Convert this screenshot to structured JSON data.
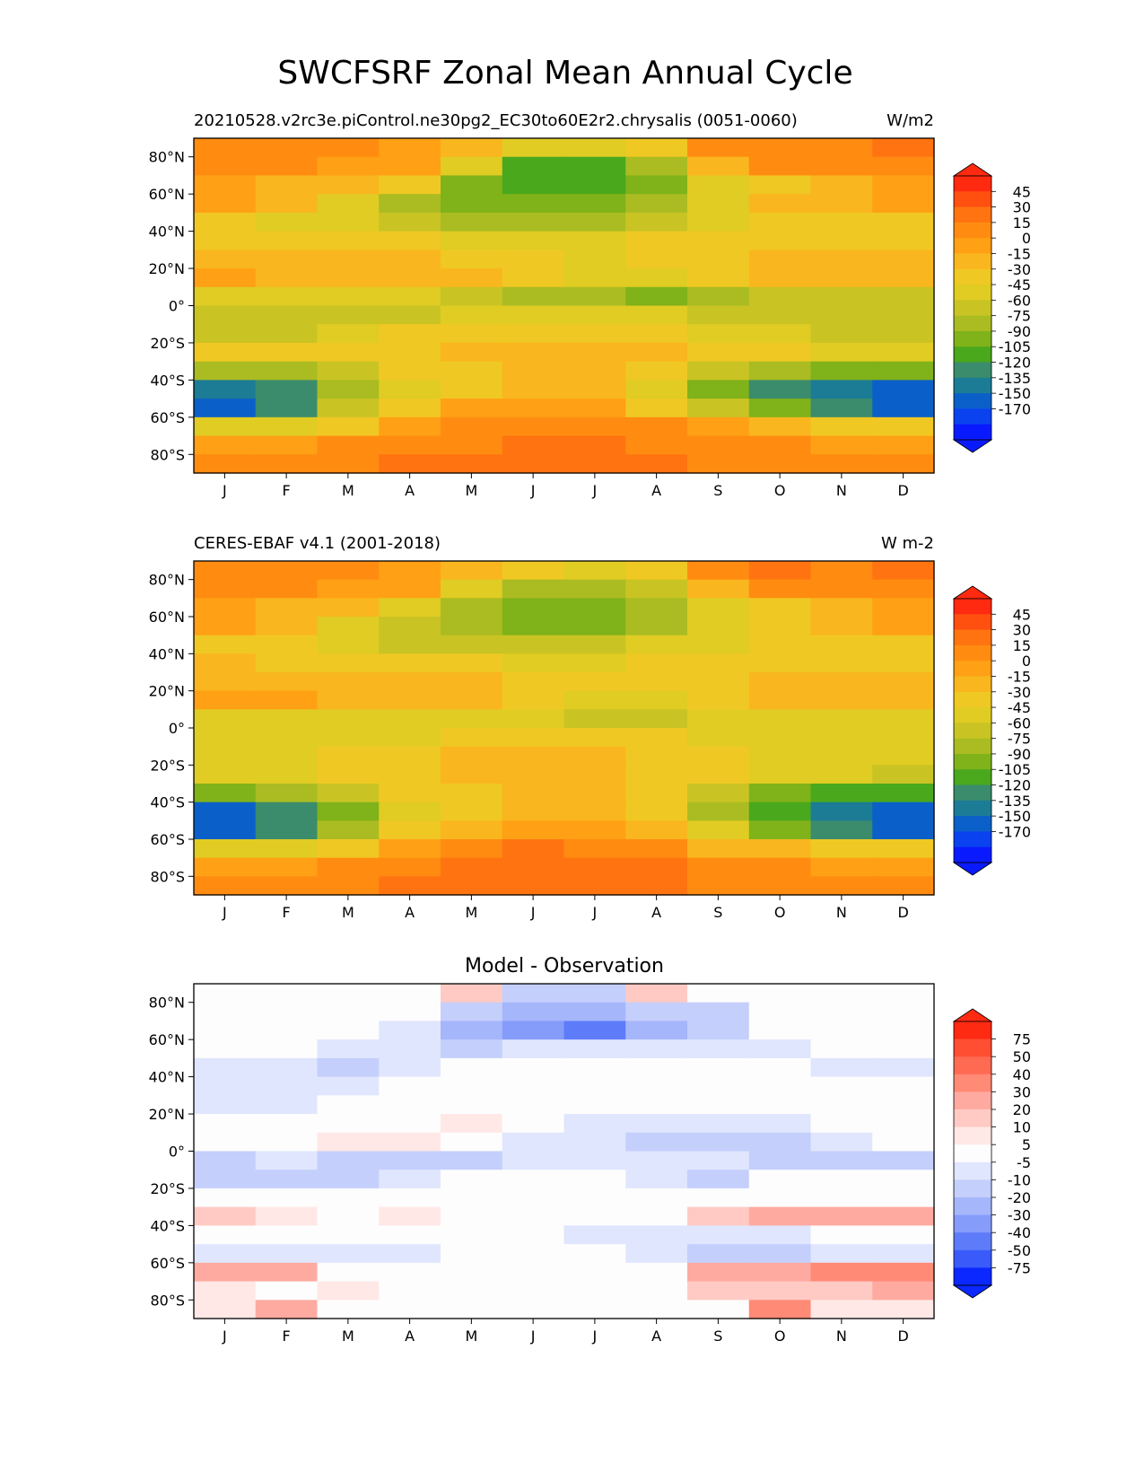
{
  "figure": {
    "title": "SWCFSRF Zonal Mean Annual Cycle"
  },
  "chart_data": [
    {
      "type": "heatmap",
      "title_left": "20210528.v2rc3e.piControl.ne30pg2_EC30to60E2r2.chrysalis (0051-0060)",
      "title_right": "W/m2",
      "x": [
        "J",
        "F",
        "M",
        "A",
        "M",
        "J",
        "J",
        "A",
        "S",
        "O",
        "N",
        "D"
      ],
      "ylim": [
        -90,
        90
      ],
      "yticks": [
        {
          "v": 80,
          "label": "80°N"
        },
        {
          "v": 60,
          "label": "60°N"
        },
        {
          "v": 40,
          "label": "40°N"
        },
        {
          "v": 20,
          "label": "20°N"
        },
        {
          "v": 0,
          "label": "0°"
        },
        {
          "v": -20,
          "label": "20°S"
        },
        {
          "v": -40,
          "label": "40°S"
        },
        {
          "v": -60,
          "label": "60°S"
        },
        {
          "v": -80,
          "label": "80°S"
        }
      ],
      "colorbar": {
        "labels": [
          "45",
          "30",
          "15",
          "0",
          "-15",
          "-30",
          "-45",
          "-60",
          "-75",
          "-90",
          "-105",
          "-120",
          "-135",
          "-150",
          "-170"
        ],
        "colors": [
          "#ff2a10",
          "#ff5010",
          "#ff7410",
          "#ff8c10",
          "#ffa015",
          "#f9b61e",
          "#f0c823",
          "#e0cc23",
          "#c9c424",
          "#aabc22",
          "#80b219",
          "#4aa81c",
          "#3a8c6c",
          "#1c7c96",
          "#0a60c8",
          "#0a42f0",
          "#0a1aff"
        ]
      },
      "lat": [
        85,
        75,
        65,
        55,
        45,
        35,
        25,
        15,
        5,
        -5,
        -15,
        -25,
        -35,
        -45,
        -55,
        -65,
        -75,
        -85
      ],
      "values": [
        [
          10,
          5,
          0,
          -5,
          -20,
          -50,
          -60,
          -45,
          5,
          10,
          10,
          15
        ],
        [
          0,
          0,
          -5,
          -10,
          -60,
          -110,
          -120,
          -90,
          -20,
          0,
          5,
          10
        ],
        [
          -10,
          -20,
          -30,
          -45,
          -95,
          -120,
          -115,
          -100,
          -60,
          -35,
          -20,
          -5
        ],
        [
          -15,
          -30,
          -50,
          -80,
          -95,
          -105,
          -100,
          -85,
          -55,
          -30,
          -20,
          -15
        ],
        [
          -40,
          -50,
          -60,
          -75,
          -80,
          -85,
          -80,
          -70,
          -50,
          -40,
          -35,
          -40
        ],
        [
          -45,
          -45,
          -45,
          -45,
          -50,
          -55,
          -55,
          -45,
          -40,
          -35,
          -40,
          -45
        ],
        [
          -25,
          -30,
          -30,
          -30,
          -35,
          -45,
          -50,
          -45,
          -40,
          -30,
          -30,
          -30
        ],
        [
          -15,
          -20,
          -20,
          -20,
          -25,
          -40,
          -55,
          -50,
          -40,
          -25,
          -20,
          -20
        ],
        [
          -60,
          -60,
          -55,
          -55,
          -65,
          -80,
          -90,
          -95,
          -90,
          -70,
          -65,
          -65
        ],
        [
          -75,
          -75,
          -70,
          -65,
          -60,
          -55,
          -55,
          -60,
          -65,
          -70,
          -70,
          -70
        ],
        [
          -70,
          -65,
          -55,
          -40,
          -35,
          -35,
          -35,
          -40,
          -55,
          -60,
          -65,
          -70
        ],
        [
          -45,
          -45,
          -35,
          -35,
          -30,
          -25,
          -25,
          -30,
          -40,
          -45,
          -50,
          -60
        ],
        [
          -90,
          -80,
          -65,
          -40,
          -35,
          -30,
          -30,
          -45,
          -75,
          -80,
          -95,
          -105
        ],
        [
          -150,
          -125,
          -90,
          -50,
          -35,
          -30,
          -30,
          -55,
          -95,
          -125,
          -140,
          -170
        ],
        [
          -165,
          -125,
          -75,
          -40,
          -15,
          -5,
          -10,
          -35,
          -70,
          -105,
          -130,
          -160
        ],
        [
          -60,
          -50,
          -35,
          -10,
          5,
          10,
          10,
          5,
          -10,
          -25,
          -35,
          -45
        ],
        [
          -10,
          -5,
          5,
          10,
          10,
          15,
          15,
          10,
          5,
          0,
          -5,
          -10
        ],
        [
          5,
          10,
          10,
          15,
          15,
          20,
          20,
          15,
          10,
          5,
          5,
          5
        ]
      ]
    },
    {
      "type": "heatmap",
      "title_left": "CERES-EBAF v4.1 (2001-2018)",
      "title_right": "W m-2",
      "x": [
        "J",
        "F",
        "M",
        "A",
        "M",
        "J",
        "J",
        "A",
        "S",
        "O",
        "N",
        "D"
      ],
      "ylim": [
        -90,
        90
      ],
      "yticks": [
        {
          "v": 80,
          "label": "80°N"
        },
        {
          "v": 60,
          "label": "60°N"
        },
        {
          "v": 40,
          "label": "40°N"
        },
        {
          "v": 20,
          "label": "20°N"
        },
        {
          "v": 0,
          "label": "0°"
        },
        {
          "v": -20,
          "label": "20°S"
        },
        {
          "v": -40,
          "label": "40°S"
        },
        {
          "v": -60,
          "label": "60°S"
        },
        {
          "v": -80,
          "label": "80°S"
        }
      ],
      "colorbar": {
        "labels": [
          "45",
          "30",
          "15",
          "0",
          "-15",
          "-30",
          "-45",
          "-60",
          "-75",
          "-90",
          "-105",
          "-120",
          "-135",
          "-150",
          "-170"
        ],
        "colors": [
          "#ff2a10",
          "#ff5010",
          "#ff7410",
          "#ff8c10",
          "#ffa015",
          "#f9b61e",
          "#f0c823",
          "#e0cc23",
          "#c9c424",
          "#aabc22",
          "#80b219",
          "#4aa81c",
          "#3a8c6c",
          "#1c7c96",
          "#0a60c8",
          "#0a42f0",
          "#0a1aff"
        ]
      },
      "lat": [
        85,
        75,
        65,
        55,
        45,
        35,
        25,
        15,
        5,
        -5,
        -15,
        -25,
        -35,
        -45,
        -55,
        -65,
        -75,
        -85
      ],
      "values": [
        [
          10,
          5,
          0,
          -10,
          -25,
          -35,
          -50,
          -45,
          10,
          15,
          10,
          15
        ],
        [
          0,
          0,
          -5,
          -15,
          -50,
          -80,
          -85,
          -70,
          -20,
          0,
          5,
          10
        ],
        [
          -10,
          -20,
          -30,
          -50,
          -80,
          -100,
          -95,
          -85,
          -55,
          -35,
          -20,
          -5
        ],
        [
          -15,
          -30,
          -50,
          -70,
          -90,
          -100,
          -95,
          -80,
          -55,
          -35,
          -20,
          -15
        ],
        [
          -35,
          -40,
          -55,
          -65,
          -75,
          -75,
          -70,
          -60,
          -50,
          -40,
          -35,
          -35
        ],
        [
          -30,
          -35,
          -40,
          -40,
          -45,
          -50,
          -50,
          -45,
          -40,
          -35,
          -35,
          -35
        ],
        [
          -20,
          -20,
          -25,
          -25,
          -30,
          -40,
          -45,
          -40,
          -35,
          -25,
          -20,
          -20
        ],
        [
          -15,
          -15,
          -20,
          -20,
          -30,
          -45,
          -55,
          -50,
          -45,
          -30,
          -20,
          -20
        ],
        [
          -55,
          -55,
          -50,
          -50,
          -55,
          -60,
          -65,
          -65,
          -60,
          -55,
          -55,
          -55
        ],
        [
          -60,
          -60,
          -55,
          -50,
          -40,
          -40,
          -40,
          -40,
          -50,
          -55,
          -55,
          -60
        ],
        [
          -55,
          -50,
          -45,
          -35,
          -30,
          -25,
          -30,
          -35,
          -45,
          -50,
          -55,
          -60
        ],
        [
          -55,
          -55,
          -45,
          -35,
          -30,
          -30,
          -30,
          -35,
          -45,
          -55,
          -60,
          -65
        ],
        [
          -100,
          -90,
          -75,
          -45,
          -35,
          -30,
          -30,
          -45,
          -75,
          -95,
          -110,
          -120
        ],
        [
          -160,
          -125,
          -95,
          -50,
          -35,
          -25,
          -25,
          -45,
          -85,
          -120,
          -140,
          -165
        ],
        [
          -170,
          -130,
          -85,
          -45,
          -20,
          -10,
          -10,
          -30,
          -60,
          -95,
          -130,
          -165
        ],
        [
          -60,
          -55,
          -40,
          -10,
          10,
          15,
          10,
          0,
          -20,
          -30,
          -35,
          -45
        ],
        [
          -15,
          -10,
          0,
          10,
          15,
          15,
          15,
          15,
          10,
          5,
          -5,
          -10
        ],
        [
          5,
          10,
          10,
          15,
          15,
          20,
          20,
          15,
          10,
          5,
          5,
          5
        ]
      ]
    },
    {
      "type": "heatmap",
      "title": "Model - Observation",
      "x": [
        "J",
        "F",
        "M",
        "A",
        "M",
        "J",
        "J",
        "A",
        "S",
        "O",
        "N",
        "D"
      ],
      "ylim": [
        -90,
        90
      ],
      "yticks": [
        {
          "v": 80,
          "label": "80°N"
        },
        {
          "v": 60,
          "label": "60°N"
        },
        {
          "v": 40,
          "label": "40°N"
        },
        {
          "v": 20,
          "label": "20°N"
        },
        {
          "v": 0,
          "label": "0°"
        },
        {
          "v": -20,
          "label": "20°S"
        },
        {
          "v": -40,
          "label": "40°S"
        },
        {
          "v": -60,
          "label": "60°S"
        },
        {
          "v": -80,
          "label": "80°S"
        }
      ],
      "colorbar": {
        "labels": [
          "75",
          "50",
          "40",
          "30",
          "20",
          "10",
          "5",
          "-5",
          "-10",
          "-20",
          "-30",
          "-40",
          "-50",
          "-75"
        ],
        "colors": [
          "#ff2a12",
          "#ff4e32",
          "#ff6a52",
          "#ff8a76",
          "#ffaaa0",
          "#ffcac4",
          "#ffe8e6",
          "#fdfdfd",
          "#e0e6fd",
          "#c4cffc",
          "#a6b6fb",
          "#869cfa",
          "#5e7cfa",
          "#3a5af9",
          "#0a28ff"
        ]
      },
      "lat": [
        85,
        75,
        65,
        55,
        45,
        35,
        25,
        15,
        5,
        -5,
        -15,
        -25,
        -35,
        -45,
        -55,
        -65,
        -75,
        -85
      ],
      "values": [
        [
          0,
          0,
          0,
          0,
          12,
          -15,
          -15,
          12,
          -5,
          0,
          0,
          0
        ],
        [
          0,
          0,
          0,
          0,
          -12,
          -30,
          -30,
          -20,
          -12,
          0,
          0,
          0
        ],
        [
          0,
          0,
          0,
          -7,
          -25,
          -40,
          -45,
          -30,
          -20,
          0,
          0,
          0
        ],
        [
          0,
          0,
          -7,
          -7,
          -15,
          -8,
          -8,
          -8,
          -8,
          -8,
          0,
          0
        ],
        [
          -8,
          -8,
          -15,
          -8,
          0,
          0,
          0,
          0,
          0,
          0,
          -8,
          -8
        ],
        [
          -8,
          -8,
          -8,
          0,
          0,
          0,
          0,
          0,
          0,
          0,
          0,
          0
        ],
        [
          -8,
          -8,
          0,
          0,
          0,
          0,
          0,
          0,
          0,
          0,
          0,
          0
        ],
        [
          0,
          0,
          0,
          0,
          8,
          0,
          -8,
          -8,
          -8,
          -8,
          0,
          0
        ],
        [
          0,
          0,
          6,
          6,
          0,
          -8,
          -10,
          -12,
          -15,
          -12,
          -6,
          0
        ],
        [
          -15,
          -8,
          -15,
          -15,
          -20,
          -8,
          -8,
          -8,
          -8,
          -12,
          -12,
          -12
        ],
        [
          -12,
          -20,
          -15,
          -8,
          0,
          0,
          0,
          -8,
          -12,
          0,
          0,
          0
        ],
        [
          0,
          0,
          0,
          0,
          0,
          0,
          0,
          0,
          0,
          0,
          0,
          0
        ],
        [
          15,
          8,
          0,
          8,
          0,
          0,
          0,
          0,
          15,
          20,
          20,
          20
        ],
        [
          0,
          0,
          0,
          0,
          0,
          0,
          -8,
          -8,
          -8,
          -8,
          0,
          0
        ],
        [
          -8,
          -8,
          -8,
          -8,
          0,
          0,
          0,
          -8,
          -15,
          -15,
          -10,
          -8
        ],
        [
          25,
          25,
          0,
          0,
          0,
          0,
          0,
          0,
          20,
          25,
          30,
          35
        ],
        [
          8,
          0,
          8,
          0,
          0,
          0,
          0,
          0,
          10,
          15,
          15,
          20
        ],
        [
          8,
          20,
          0,
          0,
          0,
          0,
          0,
          0,
          0,
          30,
          8,
          8
        ]
      ]
    }
  ]
}
